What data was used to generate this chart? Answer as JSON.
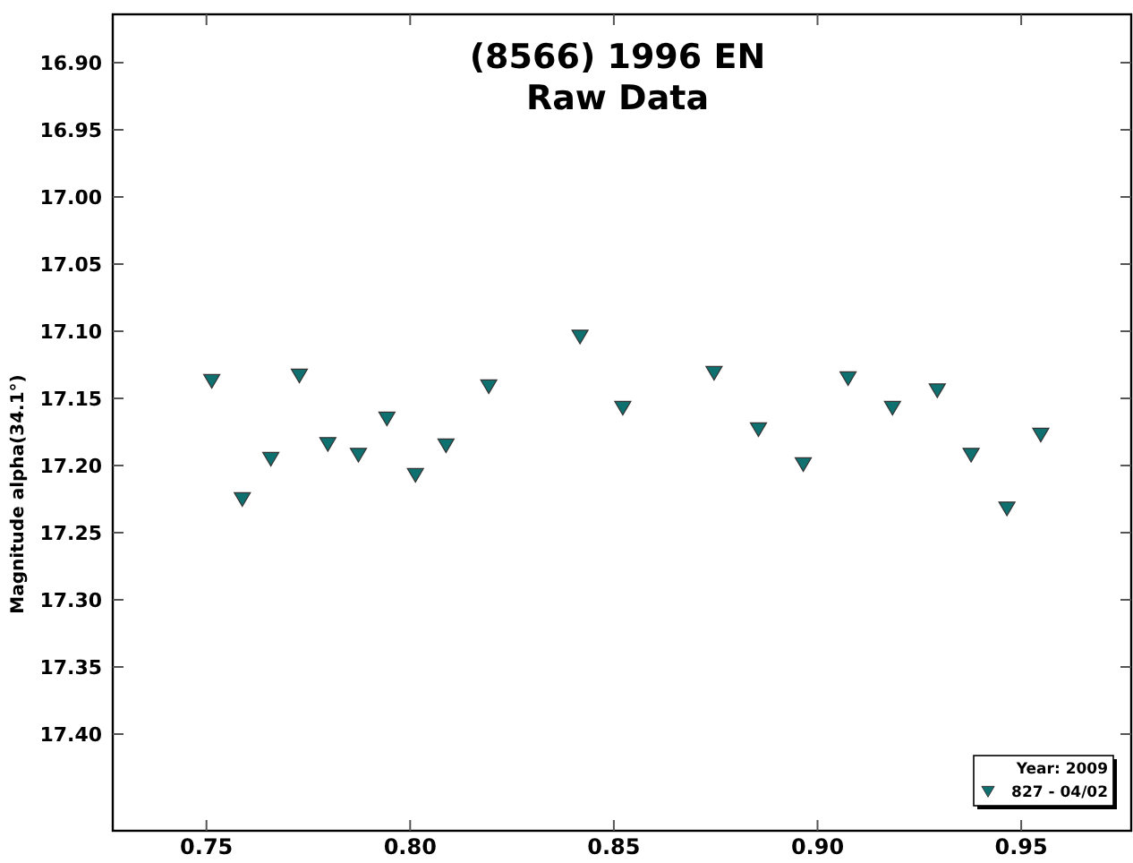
{
  "chart_data": {
    "type": "scatter",
    "title": "(8566) 1996 EN",
    "subtitle": "Raw Data",
    "ylabel": "Magnitude alpha(34.1°)",
    "legend_title": "Year: 2009",
    "legend": "bottom right",
    "marker": "triangle",
    "grid": false,
    "xlim": [
      0.727,
      0.977
    ],
    "xticks": [
      {
        "value": 0.75,
        "label": "0.75"
      },
      {
        "value": 0.8,
        "label": "0.80"
      },
      {
        "value": 0.85,
        "label": "0.85"
      },
      {
        "value": 0.9,
        "label": "0.90"
      },
      {
        "value": 0.95,
        "label": "0.95"
      }
    ],
    "ylim": [
      17.472,
      16.864
    ],
    "yticks": [
      {
        "value": 16.9,
        "label": "16.90"
      },
      {
        "value": 16.95,
        "label": "16.95"
      },
      {
        "value": 17,
        "label": "17.00"
      },
      {
        "value": 17.05,
        "label": "17.05"
      },
      {
        "value": 17.1,
        "label": "17.10"
      },
      {
        "value": 17.15,
        "label": "17.15"
      },
      {
        "value": 17.2,
        "label": "17.20"
      },
      {
        "value": 17.25,
        "label": "17.25"
      },
      {
        "value": 17.3,
        "label": "17.30"
      },
      {
        "value": 17.35,
        "label": "17.35"
      },
      {
        "value": 17.4,
        "label": "17.40"
      }
    ],
    "series": [
      {
        "name": "827 - 04/02",
        "color": "#0f7070",
        "x": [
          0.7513,
          0.7588,
          0.7658,
          0.7728,
          0.7798,
          0.7873,
          0.7943,
          0.8013,
          0.8088,
          0.8193,
          0.8417,
          0.8522,
          0.8746,
          0.8855,
          0.8965,
          0.9075,
          0.9184,
          0.9294,
          0.9377,
          0.9465,
          0.9548
        ],
        "values": [
          17.137,
          17.225,
          17.195,
          17.133,
          17.184,
          17.192,
          17.165,
          17.207,
          17.185,
          17.141,
          17.104,
          17.157,
          17.131,
          17.173,
          17.199,
          17.135,
          17.157,
          17.144,
          17.192,
          17.232,
          17.177
        ]
      }
    ]
  }
}
